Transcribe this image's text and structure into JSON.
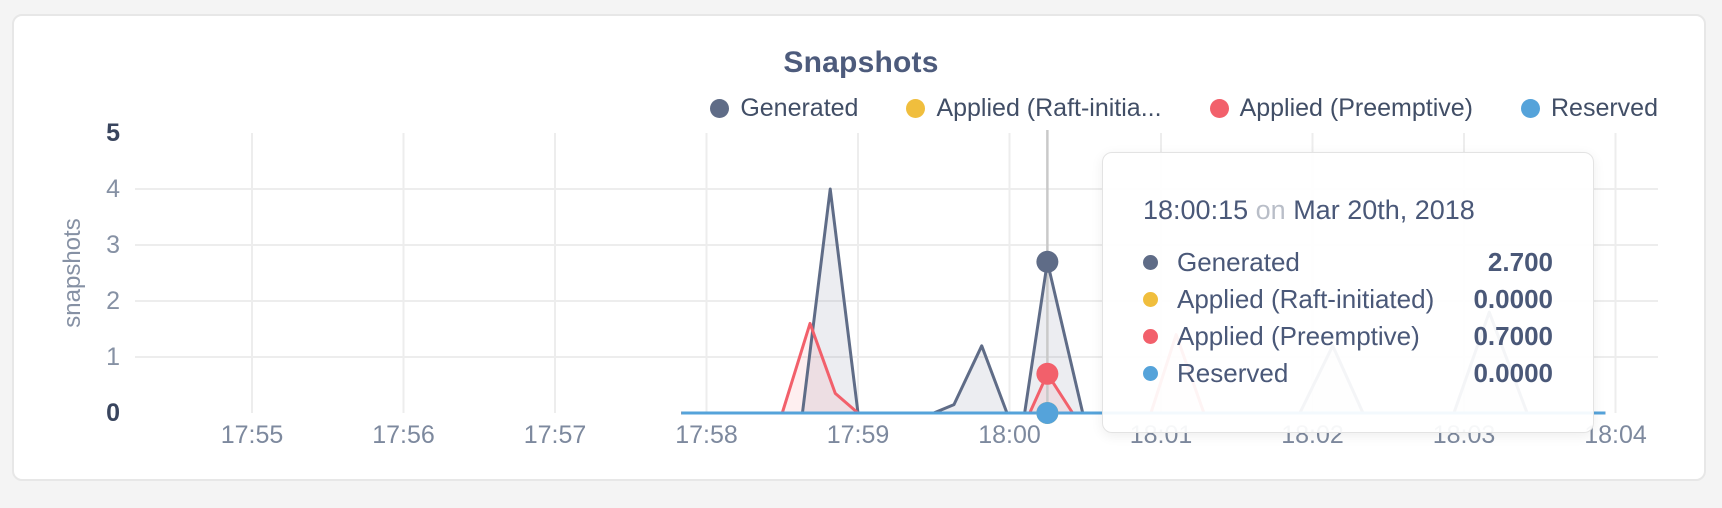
{
  "page": {
    "background": "#f4f4f4",
    "card_background": "#ffffff",
    "card_border": "#e7e7e7"
  },
  "chart_data": {
    "type": "area",
    "title": "Snapshots",
    "ylabel": "snapshots",
    "ylim": [
      0,
      5
    ],
    "yticks": [
      0,
      1,
      2,
      3,
      4,
      5
    ],
    "xticks": [
      "17:55",
      "17:56",
      "17:57",
      "17:58",
      "17:59",
      "18:00",
      "18:01",
      "18:02",
      "18:03",
      "18:04"
    ],
    "grid": true,
    "legend_position": "top-right",
    "series": [
      {
        "name": "Generated",
        "color": "#5f6c87",
        "fill": "rgba(96,108,140,0.12)",
        "points": [
          [
            "17:57:50",
            0
          ],
          [
            "17:58:38",
            0
          ],
          [
            "17:58:49",
            4.0
          ],
          [
            "17:59:00",
            0
          ],
          [
            "17:59:30",
            0
          ],
          [
            "17:59:38",
            0.15
          ],
          [
            "17:59:49",
            1.2
          ],
          [
            "17:59:59",
            0
          ],
          [
            "18:00:06",
            0
          ],
          [
            "18:00:15",
            2.7
          ],
          [
            "18:00:29",
            0
          ],
          [
            "18:01:55",
            0
          ],
          [
            "18:02:08",
            1.2
          ],
          [
            "18:02:20",
            0
          ],
          [
            "18:02:56",
            0
          ],
          [
            "18:03:10",
            1.8
          ],
          [
            "18:03:25",
            0
          ],
          [
            "18:03:56",
            0
          ]
        ]
      },
      {
        "name": "Applied (Raft-initiated)",
        "color": "#f0be3d",
        "fill": "none",
        "points": [
          [
            "17:57:50",
            0
          ],
          [
            "18:03:56",
            0
          ]
        ]
      },
      {
        "name": "Applied (Preemptive)",
        "color": "#f2606b",
        "fill": "rgba(242,96,107,0.10)",
        "points": [
          [
            "17:57:50",
            0
          ],
          [
            "17:58:30",
            0
          ],
          [
            "17:58:41",
            1.6
          ],
          [
            "17:58:51",
            0.35
          ],
          [
            "17:59:00",
            0
          ],
          [
            "18:00:08",
            0
          ],
          [
            "18:00:15",
            0.7
          ],
          [
            "18:00:25",
            0
          ],
          [
            "18:00:56",
            0
          ],
          [
            "18:01:06",
            1.4
          ],
          [
            "18:01:17",
            0
          ],
          [
            "18:03:56",
            0
          ]
        ]
      },
      {
        "name": "Reserved",
        "color": "#55a3da",
        "fill": "none",
        "points": [
          [
            "17:57:50",
            0
          ],
          [
            "18:03:56",
            0
          ]
        ]
      }
    ],
    "hover": {
      "time": "18:00:15",
      "guideline_color": "#c9c9c9",
      "dots": [
        {
          "series": "Generated",
          "value": 2.7
        },
        {
          "series": "Applied (Raft-initiated)",
          "value": 0
        },
        {
          "series": "Applied (Preemptive)",
          "value": 0.7
        },
        {
          "series": "Reserved",
          "value": 0
        }
      ]
    }
  },
  "legend": {
    "items": [
      {
        "label": "Generated",
        "color": "#5f6c87"
      },
      {
        "label": "Applied (Raft-initia...",
        "color": "#f0be3d"
      },
      {
        "label": "Applied (Preemptive)",
        "color": "#f2606b"
      },
      {
        "label": "Reserved",
        "color": "#55a3da"
      }
    ]
  },
  "tooltip": {
    "time": "18:00:15",
    "on_word": "on",
    "date": "Mar 20th, 2018",
    "rows": [
      {
        "label": "Generated",
        "color": "#5f6c87",
        "value": "2.700"
      },
      {
        "label": "Applied (Raft-initiated)",
        "color": "#f0be3d",
        "value": "0.0000"
      },
      {
        "label": "Applied (Preemptive)",
        "color": "#f2606b",
        "value": "0.7000"
      },
      {
        "label": "Reserved",
        "color": "#55a3da",
        "value": "0.0000"
      }
    ]
  },
  "colors": {
    "gridline": "#ededed",
    "axis_text": "#7d899e",
    "axis_text_bold": "#39455e",
    "title_text": "#4d5b7c"
  }
}
